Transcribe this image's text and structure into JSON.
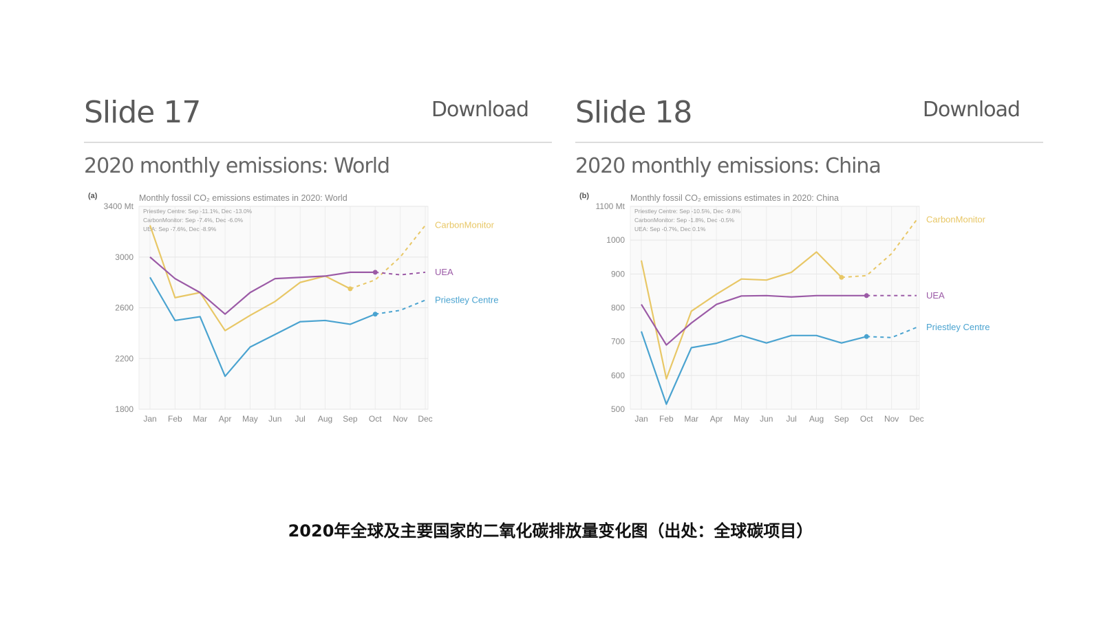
{
  "slides": [
    {
      "title": "Slide 17",
      "download_label": "Download",
      "subtitle": "2020 monthly emissions: World"
    },
    {
      "title": "Slide 18",
      "download_label": "Download",
      "subtitle": "2020 monthly emissions: China"
    }
  ],
  "caption": "2020年全球及主要国家的二氧化碳排放量变化图（出处：全球碳项目）",
  "chart_data": [
    {
      "type": "line",
      "panel_label": "(a)",
      "title": "Monthly fossil CO₂ emissions estimates in 2020: World",
      "notes": [
        "Priestley Centre: Sep -11.1%, Dec -13.0%",
        "CarbonMonitor: Sep -7.4%, Dec -6.0%",
        "UEA: Sep -7.6%, Dec -8.9%"
      ],
      "categories": [
        "Jan",
        "Feb",
        "Mar",
        "Apr",
        "May",
        "Jun",
        "Jul",
        "Aug",
        "Sep",
        "Oct",
        "Nov",
        "Dec"
      ],
      "ylim": [
        1800,
        3400
      ],
      "yticks": [
        "3400 Mt",
        "3000",
        "2600",
        "2200",
        "1800"
      ],
      "grid": true,
      "legend_placement": "right",
      "series": [
        {
          "name": "CarbonMonitor",
          "color": "#e8c766",
          "values": [
            3250,
            2680,
            2720,
            2420,
            2540,
            2650,
            2800,
            2850,
            2750,
            null,
            null,
            null
          ],
          "projected": [
            null,
            null,
            null,
            null,
            null,
            null,
            null,
            null,
            2750,
            2820,
            3000,
            3250
          ]
        },
        {
          "name": "UEA",
          "color": "#9b5aa6",
          "values": [
            3000,
            2830,
            2720,
            2550,
            2720,
            2830,
            2840,
            2850,
            2880,
            2880,
            null,
            null
          ],
          "projected": [
            null,
            null,
            null,
            null,
            null,
            null,
            null,
            null,
            null,
            2880,
            2860,
            2880
          ]
        },
        {
          "name": "Priestley Centre",
          "color": "#4aa3d0",
          "values": [
            2840,
            2500,
            2530,
            2060,
            2290,
            2390,
            2490,
            2500,
            2470,
            2550,
            null,
            null
          ],
          "projected": [
            null,
            null,
            null,
            null,
            null,
            null,
            null,
            null,
            null,
            2550,
            2580,
            2660
          ]
        }
      ]
    },
    {
      "type": "line",
      "panel_label": "(b)",
      "title": "Monthly fossil CO₂ emissions estimates in 2020: China",
      "notes": [
        "Priestley Centre: Sep -10.5%, Dec -9.8%",
        "CarbonMonitor: Sep -1.8%, Dec -0.5%",
        "UEA: Sep -0.7%, Dec 0.1%"
      ],
      "categories": [
        "Jan",
        "Feb",
        "Mar",
        "Apr",
        "May",
        "Jun",
        "Jul",
        "Aug",
        "Sep",
        "Oct",
        "Nov",
        "Dec"
      ],
      "ylim": [
        500,
        1100
      ],
      "yticks": [
        "1100 Mt",
        "1000",
        "900",
        "800",
        "700",
        "600",
        "500"
      ],
      "grid": true,
      "legend_placement": "right",
      "series": [
        {
          "name": "CarbonMonitor",
          "color": "#e8c766",
          "values": [
            940,
            590,
            790,
            840,
            885,
            882,
            905,
            965,
            890,
            null,
            null,
            null
          ],
          "projected": [
            null,
            null,
            null,
            null,
            null,
            null,
            null,
            null,
            890,
            895,
            960,
            1060
          ]
        },
        {
          "name": "UEA",
          "color": "#9b5aa6",
          "values": [
            810,
            690,
            755,
            810,
            835,
            836,
            832,
            836,
            836,
            836,
            null,
            null
          ],
          "projected": [
            null,
            null,
            null,
            null,
            null,
            null,
            null,
            null,
            null,
            836,
            836,
            836
          ]
        },
        {
          "name": "Priestley Centre",
          "color": "#4aa3d0",
          "values": [
            730,
            515,
            682,
            695,
            718,
            696,
            718,
            718,
            696,
            715,
            null,
            null
          ],
          "projected": [
            null,
            null,
            null,
            null,
            null,
            null,
            null,
            null,
            null,
            715,
            712,
            742
          ]
        }
      ]
    }
  ]
}
